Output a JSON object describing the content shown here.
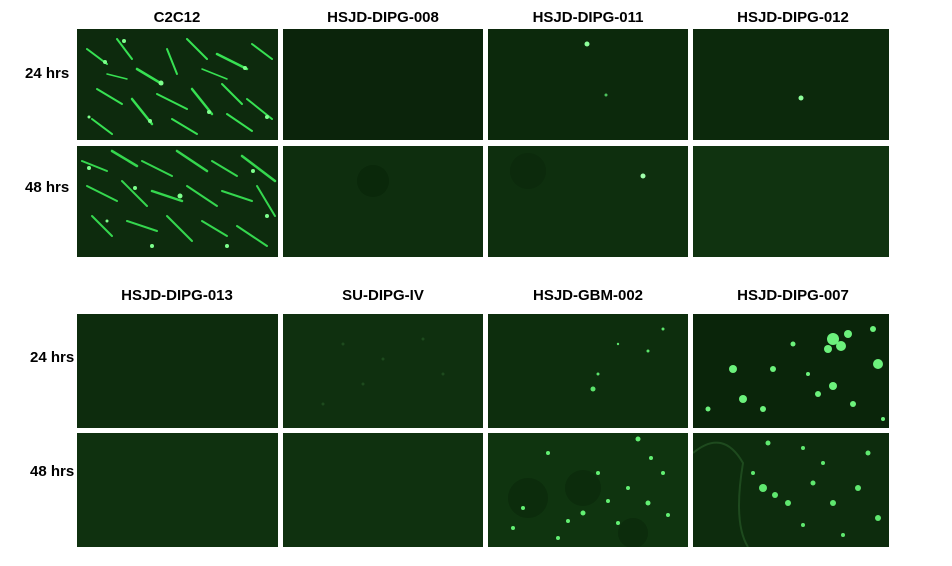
{
  "figure": {
    "top_block": {
      "columns": [
        "C2C12",
        "HSJD-DIPG-008",
        "HSJD-DIPG-011",
        "HSJD-DIPG-012"
      ],
      "rows": [
        "24 hrs",
        "48 hrs"
      ]
    },
    "bottom_block": {
      "columns": [
        "HSJD-DIPG-013",
        "SU-DIPG-IV",
        "HSJD-GBM-002",
        "HSJD-DIPG-007"
      ],
      "rows": [
        "24 hrs",
        "48 hrs"
      ]
    }
  },
  "colors": {
    "background": "#ffffff",
    "panel_dark": "#0b2a0b",
    "fluorescence": "#39ff5a"
  }
}
